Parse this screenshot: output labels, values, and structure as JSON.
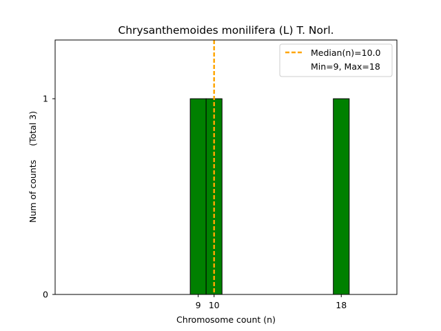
{
  "chart_data": {
    "type": "bar",
    "title": "Chrysanthemoides monilifera (L) T. Norl.",
    "xlabel": "Chromosome count (n)",
    "ylabel": "Num of counts     (Total 3)",
    "x_ticks": [
      9,
      10,
      18
    ],
    "y_ticks": [
      0,
      1
    ],
    "xlim": [
      0.0,
      21.5
    ],
    "ylim": [
      0,
      1.3
    ],
    "grid": false,
    "bar_color": "#008000",
    "bar_edge_color": "#000000",
    "bars": [
      {
        "x": 9,
        "value": 1
      },
      {
        "x": 10,
        "value": 1
      },
      {
        "x": 18,
        "value": 1
      }
    ],
    "median": {
      "value": 10.0,
      "color": "#FFA500",
      "style": "dashed"
    },
    "legend": {
      "position": "top-right",
      "entries": [
        {
          "label": "Median(n)=10.0",
          "marker": "dashed-line",
          "color": "#FFA500"
        },
        {
          "label": "Min=9, Max=18",
          "marker": "none"
        }
      ]
    }
  }
}
